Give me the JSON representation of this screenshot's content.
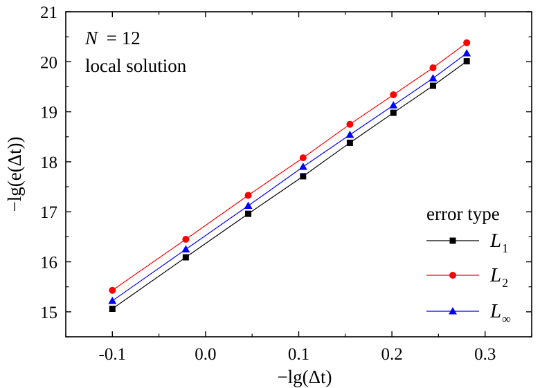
{
  "chart_data": {
    "type": "line",
    "xlabel": "−lg(Δt)",
    "ylabel": "−lg(e(Δt))",
    "xlim": [
      -0.15,
      0.35
    ],
    "ylim": [
      14.5,
      21
    ],
    "x_ticks": [
      -0.1,
      0.0,
      0.1,
      0.2,
      0.3
    ],
    "x_tick_labels": [
      "-0.1",
      "0.0",
      "0.1",
      "0.2",
      "0.3"
    ],
    "y_ticks": [
      15,
      16,
      17,
      18,
      19,
      20,
      21
    ],
    "y_tick_labels": [
      "15",
      "16",
      "17",
      "18",
      "19",
      "20",
      "21"
    ],
    "annotations": {
      "n_var": "N",
      "n_value": "= 12",
      "solution_type": "local solution"
    },
    "legend": {
      "title": "error type",
      "placement": "bottom-right"
    },
    "x": [
      -0.1,
      -0.0212,
      0.0458,
      0.1047,
      0.1549,
      0.2016,
      0.2441,
      0.2803
    ],
    "series": [
      {
        "name": "L",
        "subscript": "1",
        "color": "#000000",
        "marker": "square",
        "values": [
          15.06,
          16.09,
          16.96,
          17.71,
          18.38,
          18.98,
          19.52,
          20.01
        ]
      },
      {
        "name": "L",
        "subscript": "2",
        "color": "#ff0000",
        "marker": "circle",
        "values": [
          15.43,
          16.45,
          17.33,
          18.08,
          18.75,
          19.34,
          19.88,
          20.38
        ]
      },
      {
        "name": "L",
        "subscript": "∞",
        "color": "#0000ff",
        "marker": "triangle",
        "values": [
          15.22,
          16.25,
          17.12,
          17.9,
          18.54,
          19.13,
          19.67,
          20.17
        ]
      }
    ]
  }
}
